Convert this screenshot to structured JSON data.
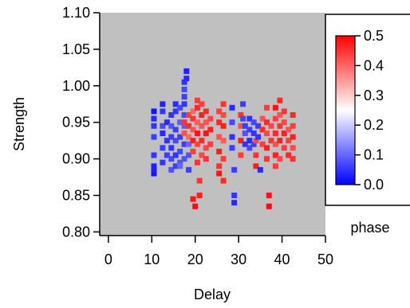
{
  "chart_data": {
    "type": "scatter",
    "xlabel": "Delay",
    "ylabel": "Strength",
    "xlim": [
      -2,
      50
    ],
    "ylim": [
      0.795,
      1.1
    ],
    "x_ticks": [
      0,
      10,
      20,
      30,
      40,
      50
    ],
    "x_tick_labels": [
      "0",
      "10",
      "20",
      "30",
      "40",
      "50"
    ],
    "y_ticks": [
      0.8,
      0.85,
      0.9,
      0.95,
      1.0,
      1.05,
      1.1
    ],
    "y_tick_labels": [
      "0.80",
      "0.85",
      "0.90",
      "0.95",
      "1.00",
      "1.05",
      "1.10"
    ],
    "plot_background": "#c0c0c0",
    "grid": false,
    "color_scale": {
      "label": "phase",
      "min": 0.0,
      "max": 0.5,
      "ticks": [
        0.0,
        0.1,
        0.2,
        0.3,
        0.4,
        0.5
      ],
      "tick_labels": [
        "0.0",
        "0.1",
        "0.2",
        "0.3",
        "0.4",
        "0.5"
      ],
      "colors": [
        "#0000ff",
        "#ffffff",
        "#ff0000"
      ],
      "placement": "right"
    },
    "points": [
      {
        "x": 10.5,
        "y": 0.88,
        "phase": 0.02
      },
      {
        "x": 10.5,
        "y": 0.89,
        "phase": 0.03
      },
      {
        "x": 10.5,
        "y": 0.905,
        "phase": 0.05
      },
      {
        "x": 10.5,
        "y": 0.93,
        "phase": 0.06
      },
      {
        "x": 10.5,
        "y": 0.955,
        "phase": 0.04
      },
      {
        "x": 10.5,
        "y": 0.965,
        "phase": 0.02
      },
      {
        "x": 10.5,
        "y": 0.885,
        "phase": 0.03
      },
      {
        "x": 10.5,
        "y": 0.945,
        "phase": 0.05
      },
      {
        "x": 12.5,
        "y": 0.895,
        "phase": 0.05
      },
      {
        "x": 12.5,
        "y": 0.915,
        "phase": 0.06
      },
      {
        "x": 12.5,
        "y": 0.935,
        "phase": 0.04
      },
      {
        "x": 12.5,
        "y": 0.965,
        "phase": 0.05
      },
      {
        "x": 12.5,
        "y": 0.975,
        "phase": 0.03
      },
      {
        "x": 12.5,
        "y": 0.945,
        "phase": 0.07
      },
      {
        "x": 13.5,
        "y": 0.905,
        "phase": 0.06
      },
      {
        "x": 13.5,
        "y": 0.925,
        "phase": 0.05
      },
      {
        "x": 13.5,
        "y": 0.95,
        "phase": 0.04
      },
      {
        "x": 14.5,
        "y": 0.885,
        "phase": 0.08
      },
      {
        "x": 14.5,
        "y": 0.9,
        "phase": 0.07
      },
      {
        "x": 14.5,
        "y": 0.915,
        "phase": 0.05
      },
      {
        "x": 14.5,
        "y": 0.93,
        "phase": 0.06
      },
      {
        "x": 14.5,
        "y": 0.945,
        "phase": 0.08
      },
      {
        "x": 14.5,
        "y": 0.96,
        "phase": 0.05
      },
      {
        "x": 15.5,
        "y": 0.89,
        "phase": 0.06
      },
      {
        "x": 15.5,
        "y": 0.905,
        "phase": 0.05
      },
      {
        "x": 15.5,
        "y": 0.925,
        "phase": 0.07
      },
      {
        "x": 15.5,
        "y": 0.94,
        "phase": 0.06
      },
      {
        "x": 15.5,
        "y": 0.965,
        "phase": 0.05
      },
      {
        "x": 15.5,
        "y": 0.975,
        "phase": 0.04
      },
      {
        "x": 16.5,
        "y": 0.895,
        "phase": 0.08
      },
      {
        "x": 16.5,
        "y": 0.91,
        "phase": 0.07
      },
      {
        "x": 16.5,
        "y": 0.93,
        "phase": 0.06
      },
      {
        "x": 16.5,
        "y": 0.95,
        "phase": 0.09
      },
      {
        "x": 16.5,
        "y": 0.97,
        "phase": 0.07
      },
      {
        "x": 16.5,
        "y": 0.89,
        "phase": 0.1
      },
      {
        "x": 17.5,
        "y": 0.9,
        "phase": 0.08
      },
      {
        "x": 17.5,
        "y": 0.92,
        "phase": 0.06
      },
      {
        "x": 17.5,
        "y": 0.945,
        "phase": 0.09
      },
      {
        "x": 17.5,
        "y": 0.96,
        "phase": 0.07
      },
      {
        "x": 17.5,
        "y": 0.975,
        "phase": 0.05
      },
      {
        "x": 17.5,
        "y": 0.985,
        "phase": 0.06
      },
      {
        "x": 17.5,
        "y": 0.995,
        "phase": 0.07
      },
      {
        "x": 17.5,
        "y": 1.005,
        "phase": 0.05
      },
      {
        "x": 18.0,
        "y": 1.01,
        "phase": 0.04
      },
      {
        "x": 18.0,
        "y": 1.02,
        "phase": 0.03
      },
      {
        "x": 17.5,
        "y": 0.935,
        "phase": 0.42
      },
      {
        "x": 17.5,
        "y": 0.95,
        "phase": 0.45
      },
      {
        "x": 18.5,
        "y": 0.93,
        "phase": 0.4
      },
      {
        "x": 18.5,
        "y": 0.945,
        "phase": 0.46
      },
      {
        "x": 18.5,
        "y": 0.96,
        "phase": 0.44
      },
      {
        "x": 18.5,
        "y": 0.905,
        "phase": 0.08
      },
      {
        "x": 18.5,
        "y": 0.92,
        "phase": 0.1
      },
      {
        "x": 18.5,
        "y": 0.885,
        "phase": 0.06
      },
      {
        "x": 19.5,
        "y": 0.91,
        "phase": 0.44
      },
      {
        "x": 19.5,
        "y": 0.925,
        "phase": 0.47
      },
      {
        "x": 19.5,
        "y": 0.94,
        "phase": 0.42
      },
      {
        "x": 19.5,
        "y": 0.955,
        "phase": 0.45
      },
      {
        "x": 19.5,
        "y": 0.965,
        "phase": 0.4
      },
      {
        "x": 19.5,
        "y": 0.845,
        "phase": 0.48
      },
      {
        "x": 20.0,
        "y": 0.835,
        "phase": 0.49
      },
      {
        "x": 20.5,
        "y": 0.895,
        "phase": 0.45
      },
      {
        "x": 20.5,
        "y": 0.92,
        "phase": 0.43
      },
      {
        "x": 20.5,
        "y": 0.935,
        "phase": 0.48
      },
      {
        "x": 20.5,
        "y": 0.95,
        "phase": 0.41
      },
      {
        "x": 20.5,
        "y": 0.97,
        "phase": 0.46
      },
      {
        "x": 20.5,
        "y": 0.98,
        "phase": 0.44
      },
      {
        "x": 21.0,
        "y": 0.85,
        "phase": 0.47
      },
      {
        "x": 21.0,
        "y": 0.87,
        "phase": 0.45
      },
      {
        "x": 21.5,
        "y": 0.905,
        "phase": 0.43
      },
      {
        "x": 21.5,
        "y": 0.925,
        "phase": 0.46
      },
      {
        "x": 21.5,
        "y": 0.945,
        "phase": 0.42
      },
      {
        "x": 21.5,
        "y": 0.96,
        "phase": 0.47
      },
      {
        "x": 21.5,
        "y": 0.975,
        "phase": 0.44
      },
      {
        "x": 22.5,
        "y": 0.9,
        "phase": 0.45
      },
      {
        "x": 22.5,
        "y": 0.915,
        "phase": 0.43
      },
      {
        "x": 22.5,
        "y": 0.935,
        "phase": 0.48
      },
      {
        "x": 22.5,
        "y": 0.95,
        "phase": 0.42
      },
      {
        "x": 22.5,
        "y": 0.965,
        "phase": 0.46
      },
      {
        "x": 23.5,
        "y": 0.92,
        "phase": 0.44
      },
      {
        "x": 23.5,
        "y": 0.94,
        "phase": 0.47
      },
      {
        "x": 23.5,
        "y": 0.955,
        "phase": 0.43
      },
      {
        "x": 25.5,
        "y": 0.89,
        "phase": 0.45
      },
      {
        "x": 25.5,
        "y": 0.91,
        "phase": 0.47
      },
      {
        "x": 25.5,
        "y": 0.93,
        "phase": 0.42
      },
      {
        "x": 25.5,
        "y": 0.95,
        "phase": 0.46
      },
      {
        "x": 25.5,
        "y": 0.965,
        "phase": 0.44
      },
      {
        "x": 25.5,
        "y": 0.88,
        "phase": 0.48
      },
      {
        "x": 26.5,
        "y": 0.87,
        "phase": 0.46
      },
      {
        "x": 26.5,
        "y": 0.9,
        "phase": 0.44
      },
      {
        "x": 26.5,
        "y": 0.925,
        "phase": 0.41
      },
      {
        "x": 26.5,
        "y": 0.945,
        "phase": 0.47
      },
      {
        "x": 26.5,
        "y": 0.975,
        "phase": 0.45
      },
      {
        "x": 26.5,
        "y": 0.96,
        "phase": 0.43
      },
      {
        "x": 28.5,
        "y": 0.915,
        "phase": 0.06
      },
      {
        "x": 28.5,
        "y": 0.93,
        "phase": 0.05
      },
      {
        "x": 28.5,
        "y": 0.95,
        "phase": 0.07
      },
      {
        "x": 28.5,
        "y": 0.97,
        "phase": 0.04
      },
      {
        "x": 29.0,
        "y": 0.885,
        "phase": 0.06
      },
      {
        "x": 29.0,
        "y": 0.85,
        "phase": 0.05
      },
      {
        "x": 29.0,
        "y": 0.84,
        "phase": 0.04
      },
      {
        "x": 30.5,
        "y": 0.905,
        "phase": 0.44
      },
      {
        "x": 30.5,
        "y": 0.925,
        "phase": 0.47
      },
      {
        "x": 30.5,
        "y": 0.945,
        "phase": 0.42
      },
      {
        "x": 30.5,
        "y": 0.96,
        "phase": 0.45
      },
      {
        "x": 31.0,
        "y": 0.975,
        "phase": 0.06
      },
      {
        "x": 31.0,
        "y": 0.955,
        "phase": 0.07
      },
      {
        "x": 31.5,
        "y": 0.92,
        "phase": 0.05
      },
      {
        "x": 31.5,
        "y": 0.935,
        "phase": 0.08
      },
      {
        "x": 31.5,
        "y": 0.945,
        "phase": 0.06
      },
      {
        "x": 32.5,
        "y": 0.925,
        "phase": 0.04
      },
      {
        "x": 32.5,
        "y": 0.94,
        "phase": 0.06
      },
      {
        "x": 32.5,
        "y": 0.955,
        "phase": 0.05
      },
      {
        "x": 32.5,
        "y": 0.915,
        "phase": 0.07
      },
      {
        "x": 33.5,
        "y": 0.92,
        "phase": 0.06
      },
      {
        "x": 33.5,
        "y": 0.935,
        "phase": 0.05
      },
      {
        "x": 33.5,
        "y": 0.95,
        "phase": 0.07
      },
      {
        "x": 34.0,
        "y": 0.89,
        "phase": 0.47
      },
      {
        "x": 34.0,
        "y": 0.905,
        "phase": 0.45
      },
      {
        "x": 34.0,
        "y": 0.925,
        "phase": 0.43
      },
      {
        "x": 34.5,
        "y": 0.945,
        "phase": 0.06
      },
      {
        "x": 34.5,
        "y": 0.93,
        "phase": 0.05
      },
      {
        "x": 35.0,
        "y": 0.885,
        "phase": 0.04
      },
      {
        "x": 35.5,
        "y": 0.92,
        "phase": 0.44
      },
      {
        "x": 35.5,
        "y": 0.94,
        "phase": 0.46
      },
      {
        "x": 35.5,
        "y": 0.955,
        "phase": 0.42
      },
      {
        "x": 36.5,
        "y": 0.9,
        "phase": 0.45
      },
      {
        "x": 36.5,
        "y": 0.915,
        "phase": 0.47
      },
      {
        "x": 36.5,
        "y": 0.935,
        "phase": 0.43
      },
      {
        "x": 36.5,
        "y": 0.95,
        "phase": 0.46
      },
      {
        "x": 36.5,
        "y": 0.97,
        "phase": 0.44
      },
      {
        "x": 37.0,
        "y": 0.85,
        "phase": 0.48
      },
      {
        "x": 37.0,
        "y": 0.835,
        "phase": 0.49
      },
      {
        "x": 37.5,
        "y": 0.925,
        "phase": 0.45
      },
      {
        "x": 37.5,
        "y": 0.945,
        "phase": 0.43
      },
      {
        "x": 38.5,
        "y": 0.89,
        "phase": 0.44
      },
      {
        "x": 38.5,
        "y": 0.905,
        "phase": 0.47
      },
      {
        "x": 38.5,
        "y": 0.92,
        "phase": 0.42
      },
      {
        "x": 38.5,
        "y": 0.935,
        "phase": 0.46
      },
      {
        "x": 38.5,
        "y": 0.955,
        "phase": 0.44
      },
      {
        "x": 38.5,
        "y": 0.97,
        "phase": 0.48
      },
      {
        "x": 39.5,
        "y": 0.9,
        "phase": 0.43
      },
      {
        "x": 39.5,
        "y": 0.925,
        "phase": 0.47
      },
      {
        "x": 39.5,
        "y": 0.945,
        "phase": 0.45
      },
      {
        "x": 39.5,
        "y": 0.96,
        "phase": 0.42
      },
      {
        "x": 39.5,
        "y": 0.98,
        "phase": 0.46
      },
      {
        "x": 40.5,
        "y": 0.915,
        "phase": 0.44
      },
      {
        "x": 40.5,
        "y": 0.935,
        "phase": 0.47
      },
      {
        "x": 40.5,
        "y": 0.95,
        "phase": 0.43
      },
      {
        "x": 40.5,
        "y": 0.965,
        "phase": 0.45
      },
      {
        "x": 41.5,
        "y": 0.905,
        "phase": 0.46
      },
      {
        "x": 41.5,
        "y": 0.925,
        "phase": 0.44
      },
      {
        "x": 41.5,
        "y": 0.94,
        "phase": 0.42
      },
      {
        "x": 42.5,
        "y": 0.9,
        "phase": 0.45
      },
      {
        "x": 42.5,
        "y": 0.915,
        "phase": 0.43
      },
      {
        "x": 42.5,
        "y": 0.93,
        "phase": 0.47
      },
      {
        "x": 42.5,
        "y": 0.945,
        "phase": 0.44
      },
      {
        "x": 42.5,
        "y": 0.96,
        "phase": 0.46
      }
    ]
  }
}
